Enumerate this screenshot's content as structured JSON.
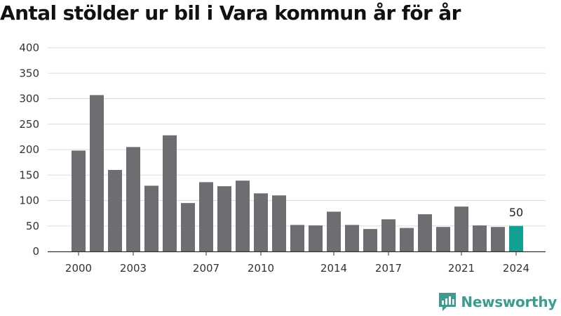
{
  "title": "Antal stölder ur bil i Vara kommun år för år",
  "brand": {
    "name": "Newsworthy",
    "color": "#3e9b8f"
  },
  "colors": {
    "bar": "#6e6d72",
    "highlight": "#11a092",
    "grid": "#dddddd",
    "axis": "#333333"
  },
  "chart_data": {
    "type": "bar",
    "title": "Antal stölder ur bil i Vara kommun år för år",
    "xlabel": "",
    "ylabel": "",
    "categories": [
      "2000",
      "2001",
      "2002",
      "2003",
      "2004",
      "2005",
      "2006",
      "2007",
      "2008",
      "2009",
      "2010",
      "2011",
      "2012",
      "2013",
      "2014",
      "2015",
      "2016",
      "2017",
      "2018",
      "2019",
      "2020",
      "2021",
      "2022",
      "2023",
      "2024"
    ],
    "values": [
      198,
      307,
      160,
      205,
      129,
      228,
      95,
      136,
      128,
      139,
      114,
      110,
      52,
      51,
      78,
      52,
      44,
      63,
      46,
      73,
      48,
      88,
      51,
      48,
      50
    ],
    "ylim": [
      0,
      400
    ],
    "yticks": [
      0,
      50,
      100,
      150,
      200,
      250,
      300,
      350,
      400
    ],
    "xtick_labels": [
      "2000",
      "2003",
      "2007",
      "2010",
      "2014",
      "2017",
      "2021",
      "2024"
    ],
    "highlight_category": "2024",
    "annotations": [
      {
        "category": "2024",
        "text": "50"
      }
    ],
    "grid": true
  }
}
